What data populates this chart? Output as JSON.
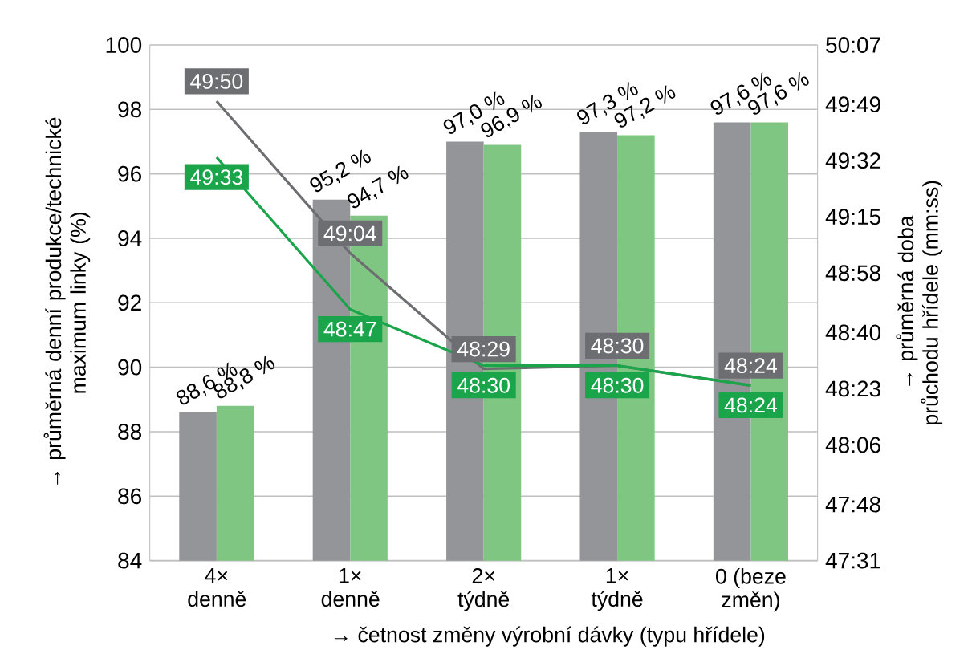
{
  "chart_data": {
    "type": "bar",
    "xlabel": "→ četnost změny výrobní dávky (typu hřídele)",
    "ylabel": "→ průměrná denní produkce/technické maximum linky (%)",
    "y2label": "→ průměrná doba průchodu hřídele (mm:ss)",
    "categories": [
      "4× denně",
      "1× denně",
      "2× týdně",
      "1× týdně",
      "0 (beze změn)"
    ],
    "series": [
      {
        "color": "#939598",
        "values": [
          88.6,
          95.2,
          97.0,
          97.3,
          97.6
        ],
        "value_labels": [
          "88,6 %",
          "95,2 %",
          "97,0 %",
          "97,3 %",
          "97,6 %"
        ]
      },
      {
        "color": "#80c683",
        "values": [
          88.8,
          94.7,
          96.9,
          97.2,
          97.6
        ],
        "value_labels": [
          "88,8 %",
          "94,7 %",
          "96,9 %",
          "97,2 %",
          "97,6 %"
        ]
      },
      {
        "type": "line",
        "axis": "y2",
        "color": "#6d6e71",
        "values": [
          2990,
          2944,
          2909,
          2910,
          2904
        ],
        "value_labels": [
          "49:50",
          "49:04",
          "48:29",
          "48:30",
          "48:24"
        ]
      },
      {
        "type": "line",
        "axis": "y2",
        "color": "#1aa54b",
        "values": [
          2973,
          2927,
          2910,
          2910,
          2904
        ],
        "value_labels": [
          "49:33",
          "48:47",
          "48:30",
          "48:30",
          "48:24"
        ]
      }
    ],
    "ylim": [
      84,
      100
    ],
    "yticks": [
      84,
      86,
      88,
      90,
      92,
      94,
      96,
      98,
      100
    ],
    "y2lim": [
      2851,
      3007
    ],
    "y2ticks": [
      {
        "value": 2851,
        "label": "47:31"
      },
      {
        "value": 2868,
        "label": "47:48"
      },
      {
        "value": 2886,
        "label": "48:06"
      },
      {
        "value": 2903,
        "label": "48:23"
      },
      {
        "value": 2920,
        "label": "48:40"
      },
      {
        "value": 2938,
        "label": "48:58"
      },
      {
        "value": 2955,
        "label": "49:15"
      },
      {
        "value": 2972,
        "label": "49:32"
      },
      {
        "value": 2989,
        "label": "49:49"
      },
      {
        "value": 3007,
        "label": "50:07"
      }
    ],
    "grid": "y",
    "marker": "none",
    "line_style": "solid"
  }
}
